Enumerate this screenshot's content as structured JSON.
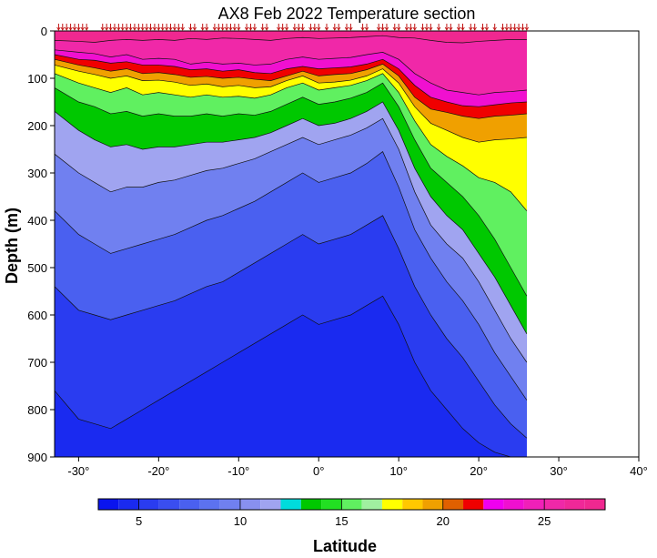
{
  "chart_data": {
    "type": "heatmap",
    "title": "AX8 Feb 2022 Temperature section",
    "xlabel": "Latitude",
    "ylabel": "Depth (m)",
    "xlim": [
      -33,
      40
    ],
    "ylim": [
      900,
      0
    ],
    "data_x_extent": [
      -33,
      26
    ],
    "x_ticks": [
      -30,
      -20,
      -10,
      0,
      10,
      20,
      30,
      40
    ],
    "x_tick_labels": [
      "-30°",
      "-20°",
      "-10°",
      "0°",
      "10°",
      "20°",
      "30°",
      "40°"
    ],
    "y_ticks": [
      0,
      100,
      200,
      300,
      400,
      500,
      600,
      700,
      800,
      900
    ],
    "y_tick_labels": [
      "0",
      "100",
      "200",
      "300",
      "400",
      "500",
      "600",
      "700",
      "800",
      "900"
    ],
    "station_latitudes": [
      -32.5,
      -32,
      -31.5,
      -31,
      -30.5,
      -30,
      -29.5,
      -29,
      -27,
      -26.5,
      -26,
      -25.5,
      -25,
      -24.5,
      -24,
      -23.5,
      -23,
      -22.5,
      -22,
      -21.5,
      -21,
      -20.5,
      -20,
      -19.5,
      -19,
      -18.5,
      -18,
      -17.5,
      -17,
      -16,
      -15.5,
      -14.5,
      -14,
      -13,
      -12.5,
      -12,
      -11.5,
      -11,
      -10.5,
      -10,
      -9,
      -8.5,
      -8,
      -7,
      -6.5,
      -5,
      -4.5,
      -4,
      -3,
      -2.5,
      -2,
      -1,
      -0.5,
      0,
      1,
      2,
      2.5,
      3.5,
      4,
      5.5,
      6,
      7.5,
      8,
      8.5,
      9.5,
      10,
      11,
      11.5,
      12,
      13,
      13.5,
      14,
      15,
      16,
      16.5,
      17.5,
      18,
      19,
      19.5,
      20.5,
      21,
      22,
      23,
      23.5,
      24,
      24.5,
      25,
      25.5,
      26
    ],
    "colorbar": {
      "range": [
        3,
        28
      ],
      "tick_values": [
        5,
        10,
        15,
        20,
        25
      ],
      "tick_labels": [
        "5",
        "10",
        "15",
        "20",
        "25"
      ],
      "levels": [
        {
          "from": 3,
          "to": 4,
          "color": "#0a14ee"
        },
        {
          "from": 4,
          "to": 5,
          "color": "#1a2af0"
        },
        {
          "from": 5,
          "to": 6,
          "color": "#2a3cf0"
        },
        {
          "from": 6,
          "to": 7,
          "color": "#3a4ef0"
        },
        {
          "from": 7,
          "to": 8,
          "color": "#4a60f0"
        },
        {
          "from": 8,
          "to": 9,
          "color": "#5c72f0"
        },
        {
          "from": 9,
          "to": 10,
          "color": "#7080f0"
        },
        {
          "from": 10,
          "to": 11,
          "color": "#8890f0"
        },
        {
          "from": 11,
          "to": 12,
          "color": "#a0a4f0"
        },
        {
          "from": 12,
          "to": 13,
          "color": "#00dcdc"
        },
        {
          "from": 13,
          "to": 14,
          "color": "#00c800"
        },
        {
          "from": 14,
          "to": 15,
          "color": "#22e022"
        },
        {
          "from": 15,
          "to": 16,
          "color": "#60f060"
        },
        {
          "from": 16,
          "to": 17,
          "color": "#a0f0a0"
        },
        {
          "from": 17,
          "to": 18,
          "color": "#ffff00"
        },
        {
          "from": 18,
          "to": 19,
          "color": "#ffc800"
        },
        {
          "from": 19,
          "to": 20,
          "color": "#f0a000"
        },
        {
          "from": 20,
          "to": 21,
          "color": "#e06000"
        },
        {
          "from": 21,
          "to": 22,
          "color": "#f00000"
        },
        {
          "from": 22,
          "to": 23,
          "color": "#f000f0"
        },
        {
          "from": 23,
          "to": 24,
          "color": "#f010d0"
        },
        {
          "from": 24,
          "to": 25,
          "color": "#f020b8"
        },
        {
          "from": 25,
          "to": 26,
          "color": "#f028a8"
        },
        {
          "from": 26,
          "to": 27,
          "color": "#f02898"
        },
        {
          "from": 27,
          "to": 28,
          "color": "#f02890"
        }
      ]
    },
    "isotherm_depths": {
      "latitudes": [
        -33,
        -30,
        -28,
        -26,
        -24,
        -22,
        -20,
        -18,
        -16,
        -14,
        -12,
        -10,
        -8,
        -6,
        -4,
        -2,
        0,
        2,
        4,
        6,
        8,
        10,
        12,
        14,
        16,
        18,
        20,
        22,
        24,
        26
      ],
      "levels": [
        {
          "temp": 27,
          "depth": [
            20,
            22,
            24,
            20,
            18,
            20,
            18,
            20,
            16,
            18,
            15,
            16,
            18,
            20,
            16,
            14,
            16,
            15,
            14,
            12,
            10,
            14,
            15,
            20,
            24,
            25,
            22,
            20,
            18,
            18
          ]
        },
        {
          "temp": 25,
          "depth": [
            40,
            45,
            48,
            55,
            50,
            60,
            58,
            60,
            70,
            66,
            70,
            68,
            72,
            70,
            60,
            55,
            60,
            58,
            56,
            50,
            45,
            60,
            90,
            110,
            125,
            130,
            135,
            130,
            128,
            125
          ]
        },
        {
          "temp": 23,
          "depth": [
            50,
            60,
            62,
            68,
            65,
            72,
            72,
            75,
            82,
            80,
            85,
            82,
            88,
            90,
            80,
            75,
            80,
            78,
            76,
            70,
            60,
            80,
            115,
            140,
            150,
            158,
            160,
            156,
            152,
            150
          ]
        },
        {
          "temp": 21,
          "depth": [
            60,
            72,
            78,
            85,
            80,
            90,
            88,
            92,
            98,
            96,
            100,
            98,
            102,
            105,
            95,
            85,
            95,
            92,
            90,
            82,
            70,
            95,
            140,
            165,
            172,
            180,
            185,
            180,
            178,
            175
          ]
        },
        {
          "temp": 19,
          "depth": [
            72,
            85,
            92,
            100,
            95,
            105,
            104,
            108,
            115,
            112,
            118,
            115,
            120,
            118,
            105,
            95,
            110,
            108,
            104,
            95,
            80,
            110,
            160,
            195,
            210,
            225,
            235,
            230,
            228,
            225
          ]
        },
        {
          "temp": 17,
          "depth": [
            90,
            110,
            120,
            130,
            120,
            135,
            130,
            135,
            140,
            135,
            140,
            138,
            142,
            135,
            120,
            110,
            125,
            120,
            115,
            105,
            90,
            130,
            190,
            240,
            265,
            285,
            310,
            320,
            340,
            380
          ]
        },
        {
          "temp": 15,
          "depth": [
            120,
            150,
            160,
            175,
            170,
            180,
            175,
            180,
            180,
            175,
            180,
            175,
            178,
            170,
            155,
            140,
            155,
            150,
            142,
            130,
            110,
            160,
            230,
            290,
            320,
            350,
            390,
            440,
            500,
            560
          ]
        },
        {
          "temp": 13,
          "depth": [
            170,
            210,
            230,
            245,
            240,
            250,
            245,
            245,
            240,
            235,
            235,
            230,
            225,
            215,
            200,
            185,
            200,
            195,
            185,
            170,
            150,
            210,
            290,
            350,
            390,
            420,
            470,
            520,
            580,
            640
          ]
        },
        {
          "temp": 11,
          "depth": [
            260,
            300,
            320,
            340,
            330,
            330,
            320,
            315,
            305,
            295,
            290,
            280,
            270,
            255,
            240,
            225,
            240,
            230,
            220,
            205,
            185,
            250,
            340,
            410,
            450,
            480,
            530,
            590,
            650,
            700
          ]
        },
        {
          "temp": 9,
          "depth": [
            380,
            430,
            450,
            470,
            460,
            450,
            440,
            430,
            415,
            400,
            390,
            375,
            360,
            340,
            320,
            300,
            320,
            310,
            300,
            280,
            255,
            330,
            420,
            480,
            530,
            570,
            620,
            680,
            730,
            780
          ]
        },
        {
          "temp": 7,
          "depth": [
            540,
            590,
            600,
            610,
            600,
            590,
            580,
            570,
            555,
            540,
            530,
            510,
            490,
            470,
            450,
            430,
            450,
            440,
            430,
            410,
            390,
            460,
            540,
            600,
            650,
            690,
            740,
            790,
            830,
            860
          ]
        },
        {
          "temp": 5,
          "depth": [
            760,
            820,
            830,
            840,
            820,
            800,
            780,
            760,
            740,
            720,
            700,
            680,
            660,
            640,
            620,
            600,
            620,
            610,
            600,
            580,
            560,
            620,
            700,
            760,
            800,
            840,
            870,
            890,
            900,
            900
          ]
        }
      ]
    },
    "deep_fill_temp": 4
  }
}
